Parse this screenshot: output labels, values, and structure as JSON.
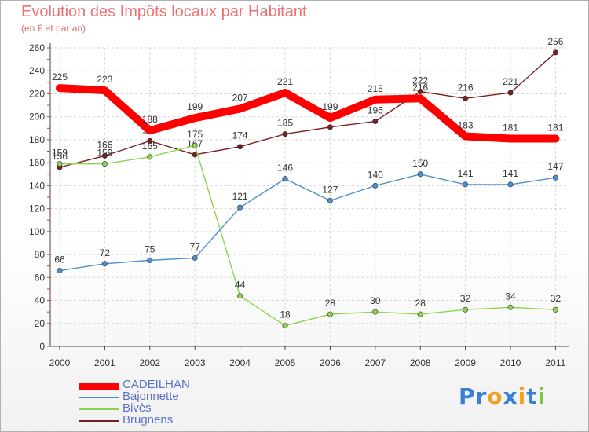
{
  "chart_data": {
    "type": "line",
    "title": "Evolution des Impôts locaux par Habitant",
    "subtitle": "(en € et par an)",
    "xlabel": "",
    "ylabel": "",
    "ylim": [
      0,
      260
    ],
    "yticks": [
      "0",
      "20",
      "40",
      "60",
      "80",
      "100",
      "120",
      "140",
      "160",
      "180",
      "200",
      "220",
      "240",
      "260"
    ],
    "categories": [
      "2000",
      "2001",
      "2002",
      "2003",
      "2004",
      "2005",
      "2006",
      "2007",
      "2008",
      "2009",
      "2010",
      "2011"
    ],
    "series": [
      {
        "name": "CADEILHAN",
        "color": "#ff0000",
        "values": [
          225,
          223,
          188,
          199,
          207,
          221,
          199,
          215,
          216,
          183,
          181,
          181
        ],
        "labels": [
          "225",
          "223",
          "188",
          "199",
          "207",
          "221",
          "199",
          "215",
          "216",
          "183",
          "181",
          "181"
        ]
      },
      {
        "name": "Bajonnette",
        "color": "#4f90cf",
        "values": [
          66,
          72,
          75,
          77,
          121,
          146,
          127,
          140,
          150,
          141,
          141,
          147
        ],
        "labels": [
          "66",
          "72",
          "75",
          "77",
          "121",
          "146",
          "127",
          "140",
          "150",
          "141",
          "141",
          "147"
        ]
      },
      {
        "name": "Bivès",
        "color": "#8dd450",
        "values": [
          159,
          159,
          165,
          175,
          44,
          18,
          28,
          30,
          28,
          32,
          34,
          32
        ],
        "labels": [
          "159",
          "159",
          "165",
          "175",
          "44",
          "18",
          "28",
          "30",
          "28",
          "32",
          "34",
          "32"
        ]
      },
      {
        "name": "Brugnens",
        "color": "#7a1f1f",
        "values": [
          156,
          166,
          179,
          167,
          174,
          185,
          191,
          196,
          222,
          216,
          221,
          256
        ],
        "labels": [
          "156",
          "166",
          "179",
          "167",
          "174",
          "185",
          "191",
          "196",
          "222",
          "216",
          "221",
          "256"
        ]
      }
    ],
    "grid": true,
    "legend_position": "bottom-left"
  },
  "logo": {
    "letters": [
      "P",
      "r",
      "o",
      "x",
      "i",
      "t",
      "i"
    ],
    "colors": [
      "#3a7fd5",
      "#3a7fd5",
      "#f2a020",
      "#3a7fd5",
      "#f2a020",
      "#3a7fd5",
      "#7bc843"
    ]
  }
}
